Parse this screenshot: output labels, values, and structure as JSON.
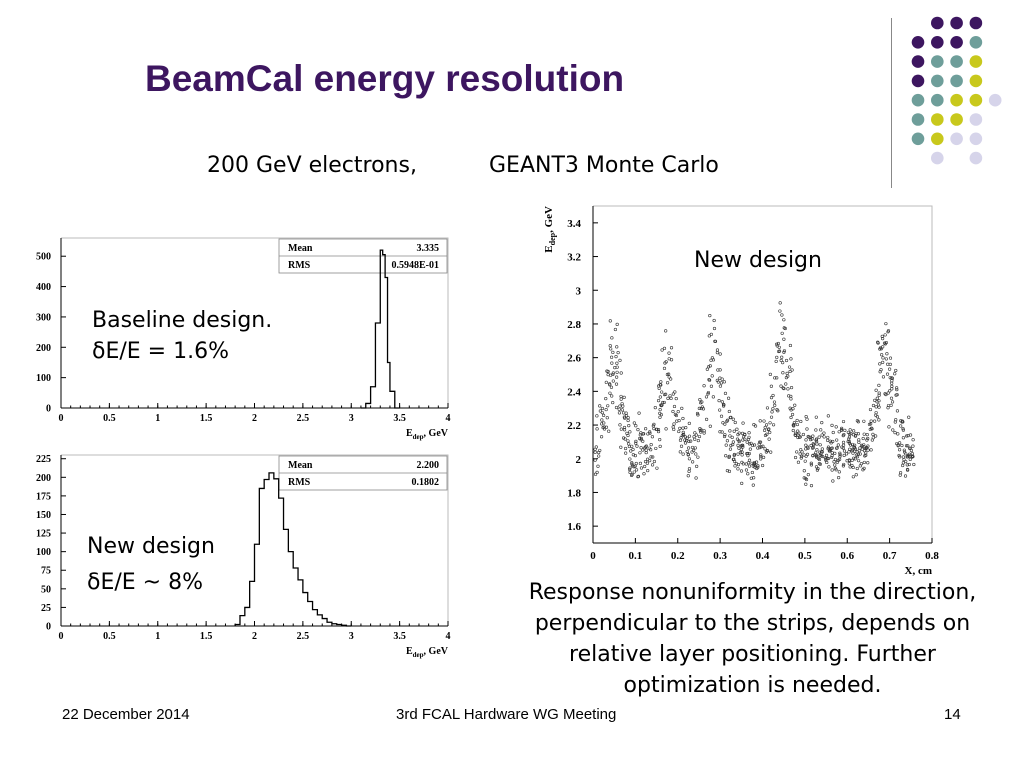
{
  "slide": {
    "title": "BeamCal energy resolution",
    "subtitle_left": "200 GeV electrons,",
    "subtitle_right": "GEANT3 Monte Carlo",
    "caption_lines": [
      "Response nonuniformity in the direction,",
      "perpendicular to the strips, depends on",
      "relative layer positioning. Further",
      "optimization is needed."
    ],
    "footer": {
      "date": "22 December 2014",
      "meeting": "3rd FCAL Hardware WG Meeting",
      "page": "14"
    },
    "decor_colors": {
      "purple": "#3d1660",
      "teal": "#6e9e9a",
      "olive": "#c8c81c",
      "lavender": "#d6d4ea"
    }
  },
  "plots": {
    "baseline": {
      "label_line1": "Baseline design.",
      "label_line2": "δE/E = 1.6%"
    },
    "newdesign": {
      "label_line1": "New design",
      "label_line2": "δE/E ~ 8%"
    },
    "scatter": {
      "label": "New design"
    }
  },
  "chart_data": [
    {
      "type": "bar",
      "xlabel": "E_dep, GeV",
      "xlim": [
        0,
        4
      ],
      "ylim": [
        0,
        560
      ],
      "xticks": [
        "0",
        "0.5",
        "1",
        "1.5",
        "2",
        "2.5",
        "3",
        "3.5",
        "4"
      ],
      "yticks": [
        "0",
        "100",
        "200",
        "300",
        "400",
        "500"
      ],
      "stats": {
        "mean_label": "Mean",
        "mean": "3.335",
        "rms_label": "RMS",
        "rms": "0.5948E-01"
      },
      "bins_x": [
        3.1,
        3.15,
        3.2,
        3.25,
        3.3,
        3.325,
        3.35,
        3.375,
        3.4,
        3.45,
        3.5
      ],
      "bins_y": [
        0,
        15,
        70,
        280,
        520,
        505,
        430,
        150,
        55,
        0
      ]
    },
    {
      "type": "bar",
      "xlabel": "E_dep, GeV",
      "xlim": [
        0,
        4
      ],
      "ylim": [
        0,
        230
      ],
      "xticks": [
        "0",
        "0.5",
        "1",
        "1.5",
        "2",
        "2.5",
        "3",
        "3.5",
        "4"
      ],
      "yticks": [
        "0",
        "25",
        "50",
        "75",
        "100",
        "125",
        "150",
        "175",
        "200",
        "225"
      ],
      "stats": {
        "mean_label": "Mean",
        "mean": "2.200",
        "rms_label": "RMS",
        "rms": "0.1802"
      },
      "bins_x": [
        1.8,
        1.85,
        1.9,
        1.95,
        2.0,
        2.05,
        2.1,
        2.15,
        2.2,
        2.25,
        2.3,
        2.35,
        2.4,
        2.45,
        2.5,
        2.55,
        2.6,
        2.65,
        2.7,
        2.75,
        2.8,
        2.85,
        2.9,
        2.95,
        3.0
      ],
      "bins_y": [
        2,
        14,
        25,
        60,
        110,
        185,
        197,
        206,
        198,
        172,
        130,
        100,
        78,
        62,
        45,
        33,
        22,
        15,
        10,
        5,
        3,
        2,
        1,
        0
      ]
    },
    {
      "type": "scatter",
      "xlabel": "X, cm",
      "ylabel": "E_dep, GeV",
      "xlim": [
        0,
        0.8
      ],
      "ylim": [
        1.5,
        3.5
      ],
      "xticks": [
        "0",
        "0.1",
        "0.2",
        "0.3",
        "0.4",
        "0.5",
        "0.6",
        "0.7",
        "0.8"
      ],
      "yticks": [
        "1.6",
        "1.8",
        "2",
        "2.2",
        "2.4",
        "2.6",
        "2.8",
        "3",
        "3.2",
        "3.4"
      ],
      "peaks_x": [
        0.05,
        0.175,
        0.285,
        0.445,
        0.69
      ],
      "peak_center_y": [
        2.55,
        2.45,
        2.6,
        2.65,
        2.6
      ],
      "valleys_x": [
        0.125,
        0.22,
        0.36,
        0.53,
        0.6
      ],
      "valley_center_y": [
        2.05,
        2.05,
        2.0,
        1.95,
        2.05
      ]
    }
  ]
}
